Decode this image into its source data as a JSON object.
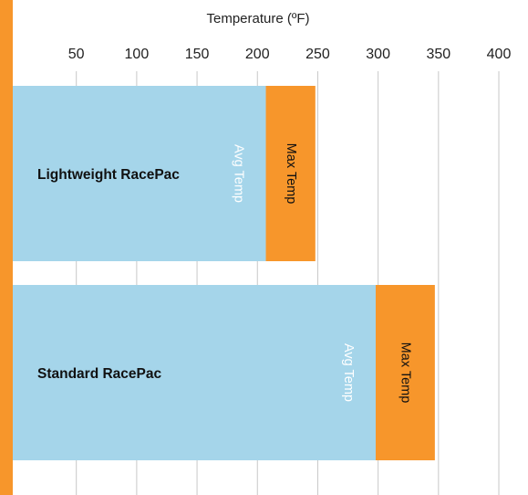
{
  "chart_data": {
    "type": "bar",
    "orientation": "horizontal",
    "stacked": true,
    "xlabel": "Temperature (ºF)",
    "x_ticks": [
      50,
      100,
      150,
      200,
      250,
      300,
      350,
      400
    ],
    "categories": [
      "Lightweight RacePac",
      "Standard RacePac"
    ],
    "series": [
      {
        "name": "Avg Temp",
        "color": "#a5d5ea",
        "values": [
          207,
          298
        ]
      },
      {
        "name": "Max Temp",
        "color": "#f7962b",
        "values": [
          248,
          347
        ]
      }
    ],
    "segment_labels": [
      "Avg Temp",
      "Max Temp"
    ],
    "grid": "vertical",
    "accent_bar_color": "#f7962b"
  }
}
